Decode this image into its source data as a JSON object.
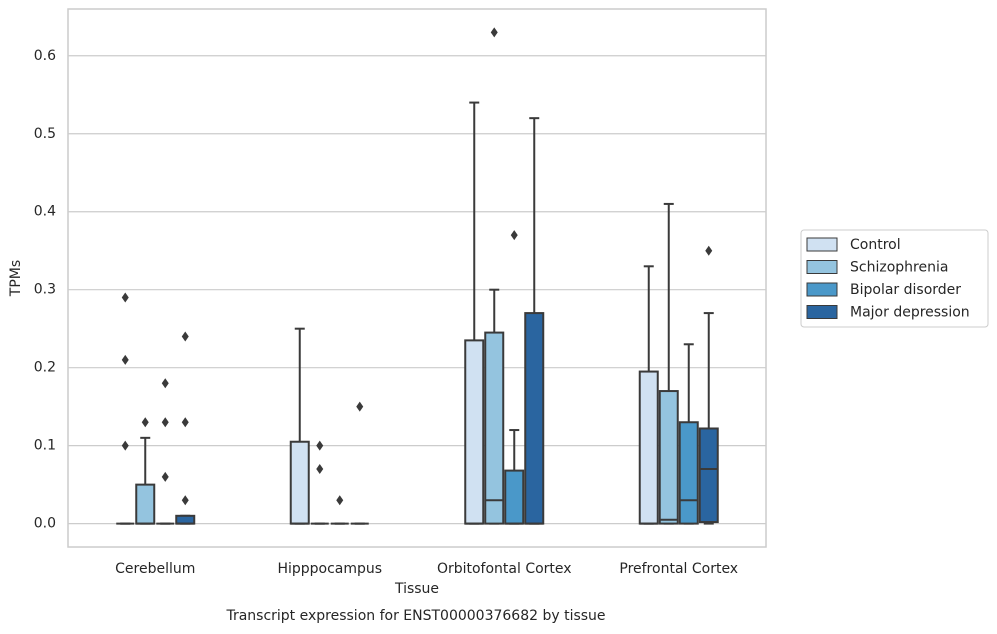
{
  "chart_data": {
    "type": "box",
    "title": "Transcript expression for ENST00000376682 by tissue",
    "xlabel": "Tissue",
    "ylabel": "TPMs",
    "categories": [
      "Cerebellum",
      "Hipppocampus",
      "Orbitofontal Cortex",
      "Prefrontal Cortex"
    ],
    "ylim": [
      -0.03,
      0.66
    ],
    "yticks": [
      {
        "value": 0,
        "label": "0.0"
      },
      0.1,
      0.2,
      0.3,
      0.4,
      0.5,
      0.6
    ],
    "grid": true,
    "legend": "right",
    "series": [
      {
        "name": "Control",
        "color": "#d0e1f2",
        "boxes": [
          {
            "whislo": 0,
            "q1": 0,
            "med": 0,
            "q3": 0,
            "whishi": 0,
            "fliers": [
              0.29,
              0.21,
              0.1
            ]
          },
          {
            "whislo": 0,
            "q1": 0,
            "med": 0,
            "q3": 0.105,
            "whishi": 0.25,
            "fliers": []
          },
          {
            "whislo": 0,
            "q1": 0,
            "med": 0,
            "q3": 0.235,
            "whishi": 0.54,
            "fliers": []
          },
          {
            "whislo": 0,
            "q1": 0,
            "med": 0,
            "q3": 0.195,
            "whishi": 0.33,
            "fliers": []
          }
        ]
      },
      {
        "name": "Schizophrenia",
        "color": "#94c4df",
        "boxes": [
          {
            "whislo": 0,
            "q1": 0,
            "med": 0,
            "q3": 0.05,
            "whishi": 0.11,
            "fliers": [
              0.13
            ]
          },
          {
            "whislo": 0,
            "q1": 0,
            "med": 0,
            "q3": 0,
            "whishi": 0,
            "fliers": [
              0.1,
              0.07
            ]
          },
          {
            "whislo": 0,
            "q1": 0,
            "med": 0.03,
            "q3": 0.245,
            "whishi": 0.3,
            "fliers": [
              0.63
            ]
          },
          {
            "whislo": 0,
            "q1": 0,
            "med": 0.005,
            "q3": 0.17,
            "whishi": 0.41,
            "fliers": []
          }
        ]
      },
      {
        "name": "Bipolar disorder",
        "color": "#4a98c9",
        "boxes": [
          {
            "whislo": 0,
            "q1": 0,
            "med": 0,
            "q3": 0,
            "whishi": 0,
            "fliers": [
              0.18,
              0.13,
              0.06
            ]
          },
          {
            "whislo": 0,
            "q1": 0,
            "med": 0,
            "q3": 0,
            "whishi": 0,
            "fliers": [
              0.03
            ]
          },
          {
            "whislo": 0,
            "q1": 0,
            "med": 0,
            "q3": 0.068,
            "whishi": 0.12,
            "fliers": [
              0.37
            ]
          },
          {
            "whislo": 0,
            "q1": 0,
            "med": 0.03,
            "q3": 0.13,
            "whishi": 0.23,
            "fliers": []
          }
        ]
      },
      {
        "name": "Major depression",
        "color": "#2a65a0",
        "boxes": [
          {
            "whislo": 0,
            "q1": 0,
            "med": 0,
            "q3": 0.01,
            "whishi": 0.01,
            "fliers": [
              0.24,
              0.13,
              0.03
            ]
          },
          {
            "whislo": 0,
            "q1": 0,
            "med": 0,
            "q3": 0,
            "whishi": 0,
            "fliers": [
              0.15
            ]
          },
          {
            "whislo": 0,
            "q1": 0,
            "med": 0,
            "q3": 0.27,
            "whishi": 0.52,
            "fliers": []
          },
          {
            "whislo": 0,
            "q1": 0.002,
            "med": 0.07,
            "q3": 0.122,
            "whishi": 0.27,
            "fliers": [
              0.35
            ]
          }
        ]
      }
    ]
  }
}
